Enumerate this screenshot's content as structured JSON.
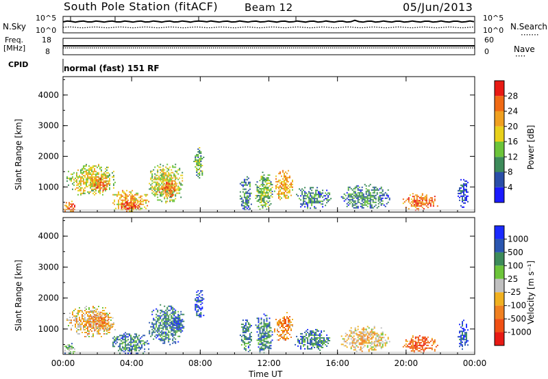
{
  "header": {
    "station": "South Pole Station (fitACF)",
    "beam": "Beam 12",
    "date": "05/Jun/2013"
  },
  "strips": {
    "nsky": {
      "label": "N.Sky",
      "ticks": [
        "10^5",
        "10^0"
      ]
    },
    "nsearch": {
      "label": "N.Search",
      "ticks": [
        "10^5",
        "10^0"
      ]
    },
    "freq": {
      "label_line1": "Freq.",
      "label_line2": "[MHz]",
      "ticks": [
        "18",
        "8"
      ]
    },
    "nave": {
      "label": "Nave",
      "ticks": [
        "60",
        "0"
      ]
    },
    "cpid": {
      "label": "CPID",
      "value": "normal (fast) 151 RF"
    }
  },
  "colors": {
    "power": [
      "#1a1aff",
      "#2a4ea8",
      "#3d8b5a",
      "#6cc43a",
      "#e8d01a",
      "#f0a020",
      "#f06a14",
      "#e81a14"
    ],
    "velocity": [
      "#1a2aff",
      "#2a56b0",
      "#3d8b5a",
      "#6cc43a",
      "#c0c0c0",
      "#f0b020",
      "#f08020",
      "#f05014",
      "#e81a14"
    ]
  },
  "chart_data": [
    {
      "type": "heatmap",
      "quantity": "power",
      "ylabel": "Slant Range [km]",
      "xlabel": "",
      "x_ticks": [
        "00:00",
        "04:00",
        "08:00",
        "12:00",
        "16:00",
        "20:00",
        "00:00"
      ],
      "y_ticks": [
        "1000",
        "2000",
        "3000",
        "4000"
      ],
      "xlim_hours": [
        0,
        24
      ],
      "ylim_km": [
        180,
        4600
      ],
      "colorbar": {
        "label": "Power [dB]",
        "ticks": [
          "4",
          "8",
          "12",
          "16",
          "20",
          "24",
          "28"
        ],
        "range": [
          0,
          30
        ]
      },
      "echo_regions": [
        {
          "t0": 0.2,
          "t1": 3.0,
          "r0": 750,
          "r1": 1750,
          "level": 4
        },
        {
          "t0": 1.5,
          "t1": 2.7,
          "r0": 900,
          "r1": 1350,
          "level": 6
        },
        {
          "t0": 2.8,
          "t1": 5.0,
          "r0": 200,
          "r1": 900,
          "level": 5
        },
        {
          "t0": 3.3,
          "t1": 4.6,
          "r0": 250,
          "r1": 550,
          "level": 7
        },
        {
          "t0": 5.0,
          "t1": 7.0,
          "r0": 500,
          "r1": 1800,
          "level": 4
        },
        {
          "t0": 5.6,
          "t1": 6.6,
          "r0": 650,
          "r1": 1300,
          "level": 6
        },
        {
          "t0": 7.6,
          "t1": 8.2,
          "r0": 1300,
          "r1": 2300,
          "level": 3
        },
        {
          "t0": 10.3,
          "t1": 11.0,
          "r0": 250,
          "r1": 1350,
          "level": 2
        },
        {
          "t0": 11.2,
          "t1": 12.2,
          "r0": 250,
          "r1": 1500,
          "level": 3
        },
        {
          "t0": 12.3,
          "t1": 13.4,
          "r0": 600,
          "r1": 1550,
          "level": 5
        },
        {
          "t0": 13.5,
          "t1": 15.6,
          "r0": 300,
          "r1": 1000,
          "level": 2
        },
        {
          "t0": 16.2,
          "t1": 19.0,
          "r0": 300,
          "r1": 1100,
          "level": 2
        },
        {
          "t0": 19.8,
          "t1": 21.8,
          "r0": 250,
          "r1": 800,
          "level": 6
        },
        {
          "t0": 23.0,
          "t1": 23.6,
          "r0": 300,
          "r1": 1300,
          "level": 1
        },
        {
          "t0": 0.0,
          "t1": 0.7,
          "r0": 200,
          "r1": 550,
          "level": 6
        }
      ]
    },
    {
      "type": "heatmap",
      "quantity": "velocity",
      "ylabel": "Slant Range [km]",
      "xlabel": "Time UT",
      "x_ticks": [
        "00:00",
        "04:00",
        "08:00",
        "12:00",
        "16:00",
        "20:00",
        "00:00"
      ],
      "y_ticks": [
        "1000",
        "2000",
        "3000",
        "4000"
      ],
      "xlim_hours": [
        0,
        24
      ],
      "ylim_km": [
        180,
        4600
      ],
      "colorbar": {
        "label": "Velocity [m s⁻¹]",
        "ticks": [
          "1000",
          "500",
          "100",
          "25",
          "-25",
          "-100",
          "-500",
          "-1000"
        ],
        "range": [
          1000,
          -1000
        ]
      },
      "echo_regions": [
        {
          "t0": 0.2,
          "t1": 3.0,
          "r0": 750,
          "r1": 1750,
          "level": 5
        },
        {
          "t0": 1.5,
          "t1": 2.9,
          "r0": 900,
          "r1": 1600,
          "level": 6
        },
        {
          "t0": 2.8,
          "t1": 5.0,
          "r0": 200,
          "r1": 900,
          "level": 2
        },
        {
          "t0": 5.0,
          "t1": 7.0,
          "r0": 500,
          "r1": 1800,
          "level": 2
        },
        {
          "t0": 6.2,
          "t1": 7.0,
          "r0": 900,
          "r1": 1500,
          "level": 1
        },
        {
          "t0": 7.6,
          "t1": 8.2,
          "r0": 1300,
          "r1": 2300,
          "level": 1
        },
        {
          "t0": 10.3,
          "t1": 11.0,
          "r0": 250,
          "r1": 1350,
          "level": 2
        },
        {
          "t0": 11.2,
          "t1": 12.2,
          "r0": 250,
          "r1": 1500,
          "level": 2
        },
        {
          "t0": 12.3,
          "t1": 13.4,
          "r0": 600,
          "r1": 1550,
          "level": 6
        },
        {
          "t0": 13.5,
          "t1": 15.6,
          "r0": 300,
          "r1": 1000,
          "level": 2
        },
        {
          "t0": 16.2,
          "t1": 19.0,
          "r0": 300,
          "r1": 1100,
          "level": 5
        },
        {
          "t0": 19.8,
          "t1": 21.8,
          "r0": 250,
          "r1": 800,
          "level": 7
        },
        {
          "t0": 23.0,
          "t1": 23.6,
          "r0": 300,
          "r1": 1300,
          "level": 1
        },
        {
          "t0": 0.0,
          "t1": 0.7,
          "r0": 200,
          "r1": 550,
          "level": 3
        }
      ]
    }
  ]
}
